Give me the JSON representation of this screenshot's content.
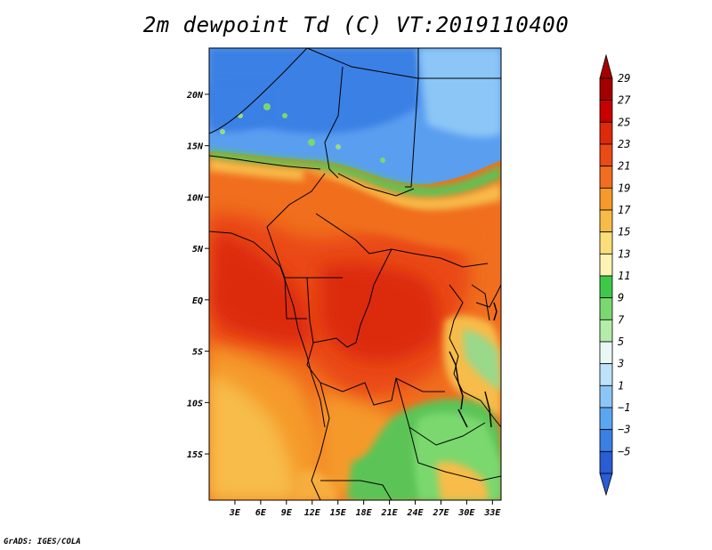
{
  "title": "2m dewpoint Td (C) VT:2019110400",
  "credit": "GrADS: IGES/COLA",
  "map": {
    "lat_labels": [
      "20N",
      "15N",
      "10N",
      "5N",
      "EQ",
      "5S",
      "10S",
      "15S"
    ],
    "lon_labels": [
      "3E",
      "6E",
      "9E",
      "12E",
      "15E",
      "18E",
      "21E",
      "24E",
      "27E",
      "30E",
      "33E"
    ],
    "lat_values": [
      20,
      15,
      10,
      5,
      0,
      -5,
      -10,
      -15
    ],
    "lon_values": [
      3,
      6,
      9,
      12,
      15,
      18,
      21,
      24,
      27,
      30,
      33
    ],
    "lat_range": [
      -19.5,
      24.5
    ],
    "lon_range": [
      0,
      34
    ]
  },
  "colorbar": {
    "labels": [
      "29",
      "27",
      "25",
      "23",
      "21",
      "19",
      "17",
      "15",
      "13",
      "11",
      "9",
      "7",
      "5",
      "3",
      "1",
      "−1",
      "−3",
      "−5"
    ],
    "colors": [
      "#a50000",
      "#c80000",
      "#dc2a0a",
      "#ea4a14",
      "#f06e1e",
      "#f59a2a",
      "#f7bc48",
      "#fade7a",
      "#fdf3b4",
      "#3ec84a",
      "#7ad86e",
      "#b4ecaa",
      "#e8f8f4",
      "#bde2fa",
      "#8cc6f6",
      "#5aa6f0",
      "#3a80e4",
      "#2a5cd4"
    ]
  }
}
